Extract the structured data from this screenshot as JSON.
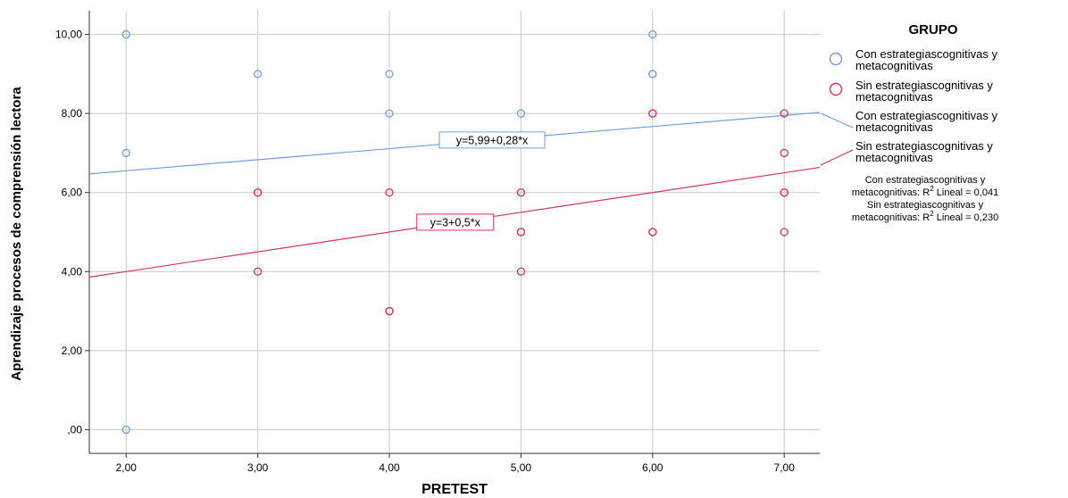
{
  "chart_data": {
    "type": "scatter",
    "xlabel": "PRETEST",
    "ylabel": "Aprendizaje procesos de comprensión lectora",
    "xlim": [
      1.72,
      7.27
    ],
    "ylim": [
      -0.6,
      10.6
    ],
    "x_ticks": [
      2,
      3,
      4,
      5,
      6,
      7
    ],
    "x_tick_labels": [
      "2,00",
      "3,00",
      "4,00",
      "5,00",
      "6,00",
      "7,00"
    ],
    "y_ticks": [
      0,
      2,
      4,
      6,
      8,
      10
    ],
    "y_tick_labels": [
      ",00",
      "2,00",
      "4,00",
      "6,00",
      "8,00",
      "10,00"
    ],
    "grid": true,
    "legend": {
      "title": "GRUPO",
      "placement": "right",
      "marker_entries": [
        {
          "line1": "Con estrategiascognitivas y",
          "line2": "metacognitivas",
          "color": "#6f9fdc"
        },
        {
          "line1": "Sin estrategiascognitivas y",
          "line2": "metacognitivas",
          "color": "#d9345a"
        }
      ],
      "line_entries": [
        {
          "line1": "Con estrategiascognitivas y",
          "line2": "metacognitivas",
          "color": "#6f9fdc"
        },
        {
          "line1": "Sin estrategiascognitivas y",
          "line2": "metacognitivas",
          "color": "#d9345a"
        }
      ],
      "r2_notes": [
        {
          "line1": "Con estrategiascognitivas y",
          "prefix": "metacognitivas: R",
          "sup": "2",
          "suffix": " Lineal = 0,041"
        },
        {
          "line1": "Sin estrategiascognitivas y",
          "prefix": "metacognitivas: R",
          "sup": "2",
          "suffix": " Lineal = 0,230"
        }
      ]
    },
    "series": [
      {
        "name": "Con estrategiascognitivas y metacognitivas",
        "color": "#6f9fdc",
        "points": [
          [
            2,
            10
          ],
          [
            2,
            7
          ],
          [
            2,
            0
          ],
          [
            3,
            9
          ],
          [
            4,
            9
          ],
          [
            4,
            8
          ],
          [
            5,
            8
          ],
          [
            5,
            6
          ],
          [
            6,
            10
          ],
          [
            6,
            9
          ],
          [
            6,
            9
          ],
          [
            7,
            8
          ]
        ],
        "fit": {
          "intercept": 5.99,
          "slope": 0.28,
          "equation": "y=5,99+0,28*x",
          "label_x": 4.78
        }
      },
      {
        "name": "Sin estrategiascognitivas y metacognitivas",
        "color": "#d9345a",
        "points": [
          [
            3,
            6
          ],
          [
            3,
            6
          ],
          [
            3,
            4
          ],
          [
            4,
            6
          ],
          [
            4,
            3
          ],
          [
            4,
            3
          ],
          [
            5,
            6
          ],
          [
            5,
            5
          ],
          [
            5,
            5
          ],
          [
            5,
            4
          ],
          [
            6,
            8
          ],
          [
            6,
            8
          ],
          [
            6,
            5
          ],
          [
            6,
            5
          ],
          [
            7,
            8
          ],
          [
            7,
            7
          ],
          [
            7,
            6
          ],
          [
            7,
            6
          ],
          [
            7,
            5
          ]
        ],
        "fit": {
          "intercept": 3,
          "slope": 0.5,
          "equation": "y=3+0,5*x",
          "label_x": 4.5
        }
      }
    ]
  }
}
